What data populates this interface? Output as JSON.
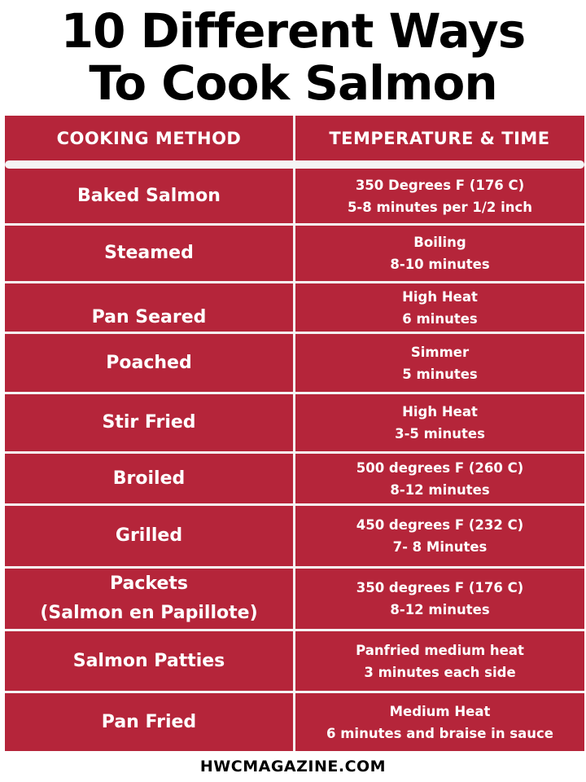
{
  "title": {
    "line1": "10 Different Ways",
    "line2": "To Cook Salmon"
  },
  "table": {
    "headers": {
      "method": "COOKING METHOD",
      "temp_time": "TEMPERATURE & TIME"
    },
    "rows": [
      {
        "method": "Baked Salmon",
        "temp": "350 Degrees F (176 C)",
        "time": "5-8 minutes per 1/2 inch"
      },
      {
        "method": "Steamed",
        "temp": "Boiling",
        "time": "8-10 minutes"
      },
      {
        "method": "Pan Seared",
        "temp": "High Heat",
        "time": "6 minutes"
      },
      {
        "method": "Poached",
        "temp": "Simmer",
        "time": "5 minutes"
      },
      {
        "method": "Stir Fried",
        "temp": "High Heat",
        "time": "3-5 minutes"
      },
      {
        "method": "Broiled",
        "temp": "500 degrees F (260 C)",
        "time": "8-12 minutes"
      },
      {
        "method": "Grilled",
        "temp": "450 degrees F (232 C)",
        "time": "7- 8 Minutes"
      },
      {
        "method": "Packets",
        "method_line2": "(Salmon en Papillote)",
        "temp": "350 degrees F (176 C)",
        "time": "8-12 minutes"
      },
      {
        "method": "Salmon Patties",
        "temp": "Panfried medium heat",
        "time": "3 minutes each side"
      },
      {
        "method": "Pan Fried",
        "temp": "Medium Heat",
        "time": "6 minutes and braise in sauce"
      }
    ]
  },
  "footer": "HWCMAGAZINE.COM",
  "colors": {
    "table_bg": "#b5253a",
    "text_on_table": "#ffffff",
    "title_text": "#000000"
  }
}
